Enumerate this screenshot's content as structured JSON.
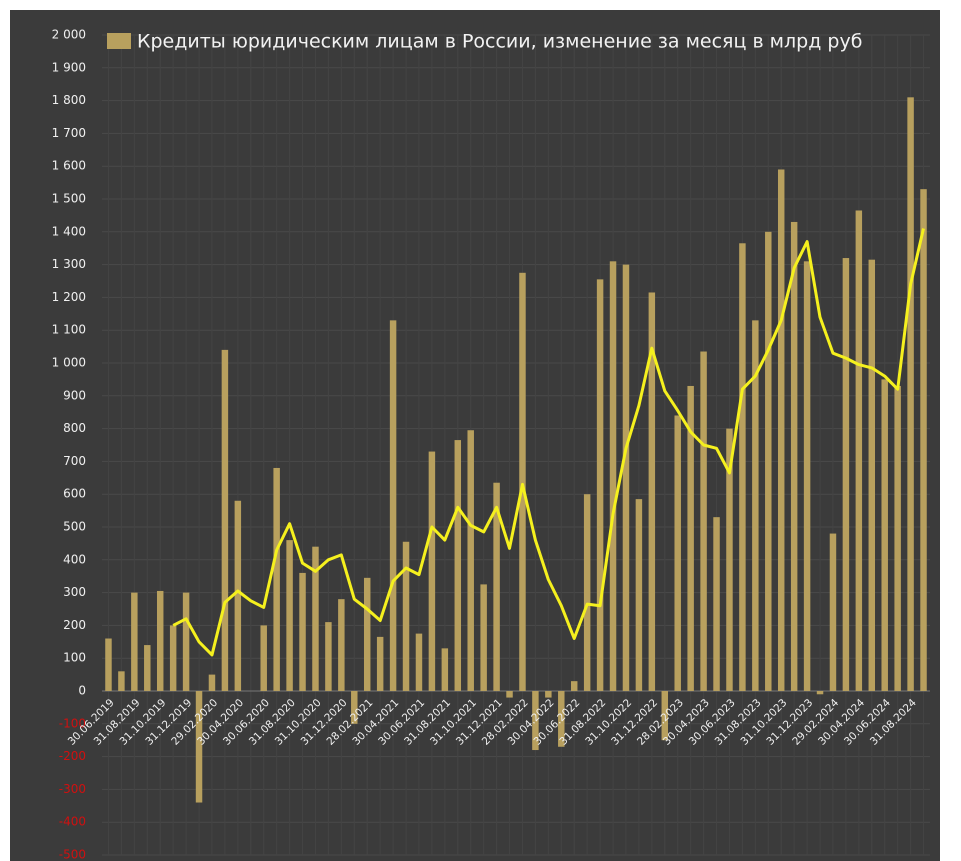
{
  "chart_data": {
    "type": "bar",
    "categories": [
      "30.06.2019",
      null,
      "31.08.2019",
      null,
      "31.10.2019",
      null,
      "31.12.2019",
      null,
      "29.02.2020",
      null,
      "30.04.2020",
      null,
      "30.06.2020",
      null,
      "31.08.2020",
      null,
      "31.10.2020",
      null,
      "31.12.2020",
      null,
      "28.02.2021",
      null,
      "30.04.2021",
      null,
      "30.06.2021",
      null,
      "31.08.2021",
      null,
      "31.10.2021",
      null,
      "31.12.2021",
      null,
      "28.02.2022",
      null,
      "30.04.2022",
      null,
      "30.06.2022",
      null,
      "31.08.2022",
      null,
      "31.10.2022",
      null,
      "31.12.2022",
      null,
      "28.02.2023",
      null,
      "30.04.2023",
      null,
      "30.06.2023",
      null,
      "31.08.2023",
      null,
      "31.10.2023",
      null,
      "31.12.2023",
      null,
      "29.02.2024",
      null,
      "30.04.2024",
      null,
      "30.06.2024",
      null,
      "31.08.2024",
      null
    ],
    "series": [
      {
        "name": "Кредиты юридическим лицам в России, изменение за месяц в млрд руб",
        "color": "#b8a05e",
        "type": "bar",
        "values": [
          160,
          60,
          300,
          140,
          305,
          200,
          300,
          -340,
          50,
          1040,
          580,
          0,
          200,
          680,
          460,
          360,
          440,
          210,
          280,
          -100,
          345,
          165,
          1130,
          455,
          175,
          730,
          130,
          765,
          795,
          325,
          635,
          -20,
          1275,
          -180,
          -20,
          -170,
          30,
          600,
          1255,
          1310,
          1300,
          585,
          1215,
          -150,
          840,
          930,
          1035,
          530,
          800,
          1365,
          1130,
          1400,
          1590,
          1430,
          1310,
          -10,
          480,
          1320,
          1465,
          1315,
          950,
          930,
          1810,
          1530
        ]
      },
      {
        "color": "#f5f01e",
        "type": "line",
        "values": [
          null,
          null,
          null,
          null,
          null,
          200,
          220,
          150,
          110,
          270,
          305,
          275,
          255,
          430,
          510,
          390,
          365,
          400,
          415,
          280,
          250,
          215,
          335,
          375,
          355,
          500,
          460,
          560,
          505,
          485,
          560,
          435,
          630,
          460,
          340,
          260,
          160,
          265,
          260,
          540,
          740,
          870,
          1045,
          915,
          855,
          790,
          750,
          740,
          665,
          920,
          960,
          1040,
          1130,
          1290,
          1370,
          1140,
          1030,
          1015,
          995,
          985,
          960,
          920,
          1240,
          1410
        ]
      }
    ],
    "ylim": [
      -500,
      2000
    ],
    "yticks": [
      -500,
      -400,
      -300,
      -200,
      -100,
      0,
      100,
      200,
      300,
      400,
      500,
      600,
      700,
      800,
      900,
      {
        "value": 1000,
        "label": "1 000"
      },
      {
        "value": 1100,
        "label": "1 100"
      },
      {
        "value": 1200,
        "label": "1 200"
      },
      {
        "value": 1300,
        "label": "1 300"
      },
      {
        "value": 1400,
        "label": "1 400"
      },
      {
        "value": 1500,
        "label": "1 500"
      },
      {
        "value": 1600,
        "label": "1 600"
      },
      {
        "value": 1700,
        "label": "1 700"
      },
      {
        "value": 1800,
        "label": "1 800"
      },
      {
        "value": 1900,
        "label": "1 900"
      },
      {
        "value": 2000,
        "label": "2 000"
      }
    ],
    "negative_tick_color": "#d01010",
    "grid": true,
    "legend": "top"
  }
}
